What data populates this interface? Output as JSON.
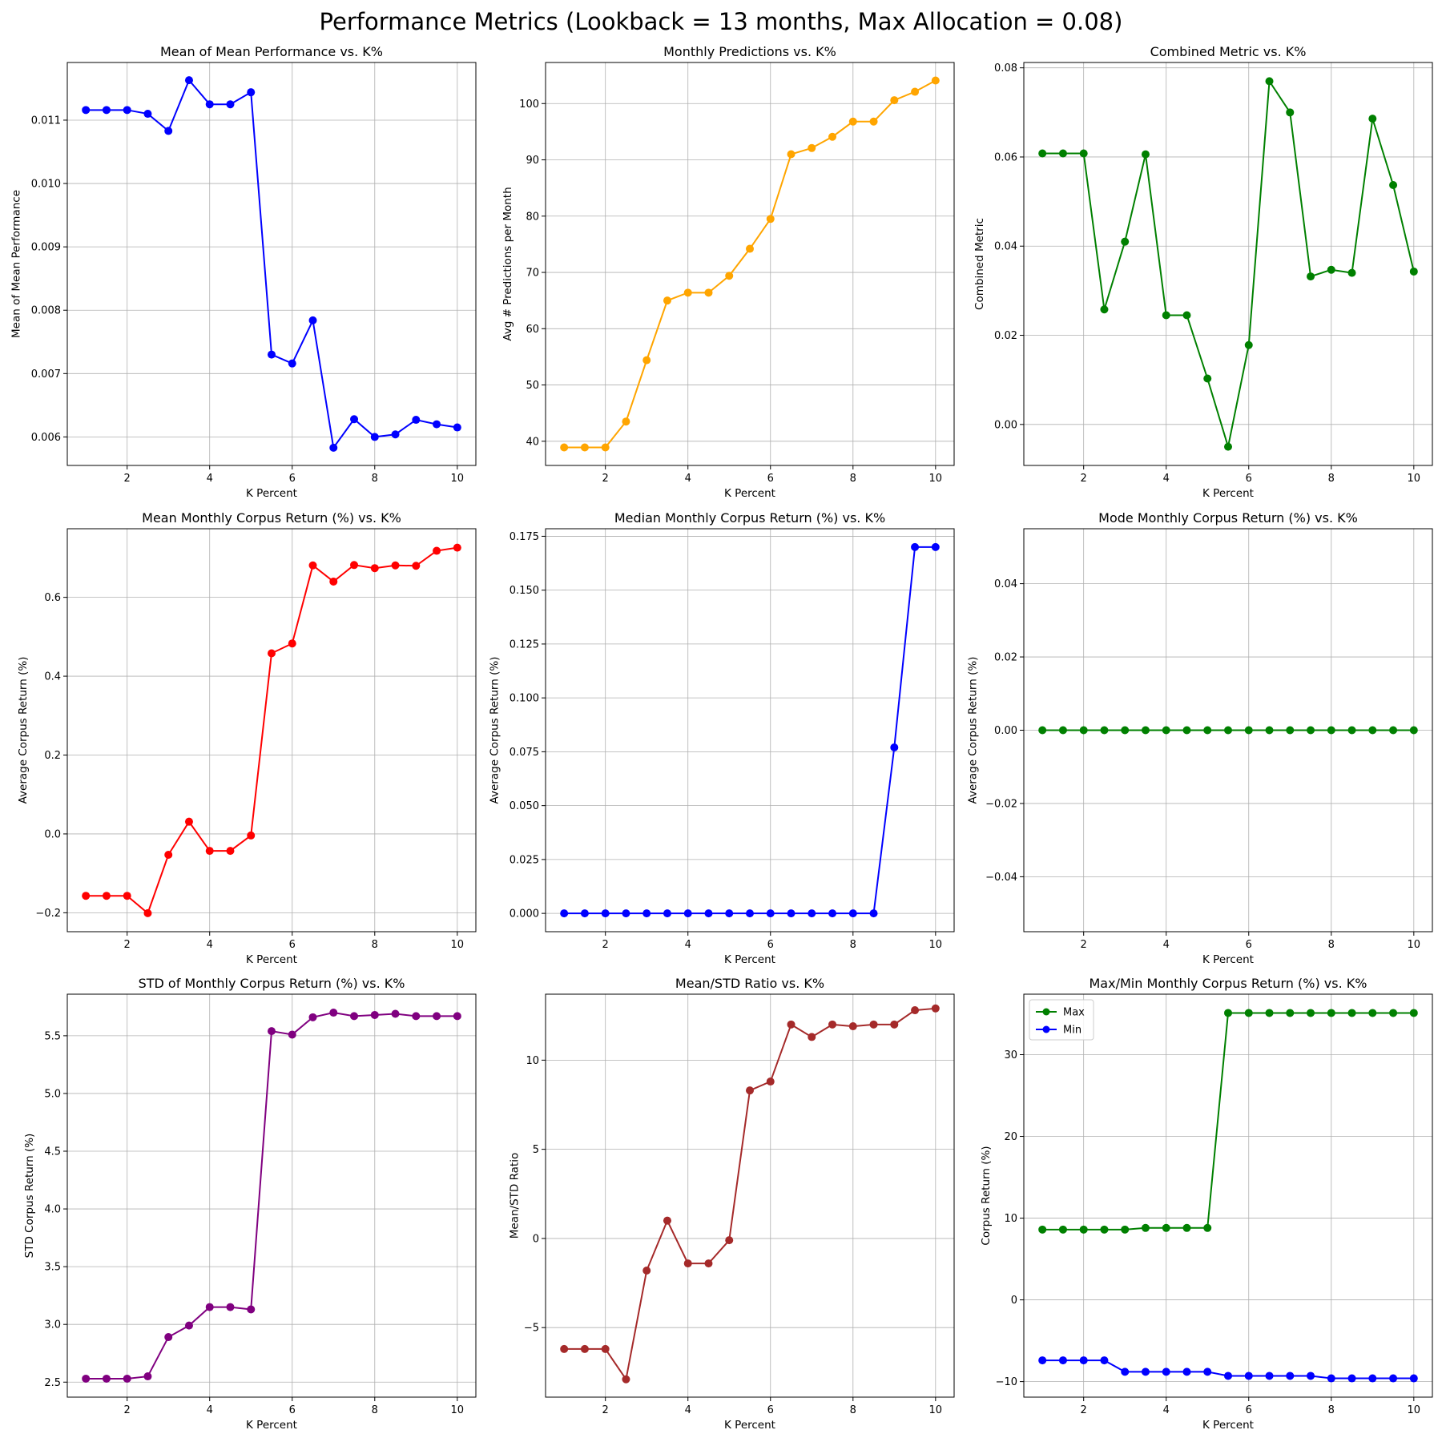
{
  "figure": {
    "title": "Performance Metrics (Lookback = 13 months, Max Allocation = 0.08)"
  },
  "chart_data": [
    {
      "type": "line",
      "title": "Mean of Mean Performance vs. K%",
      "xlabel": "K Percent",
      "ylabel": "Mean of Mean Performance",
      "xlim": [
        0.55,
        10.45
      ],
      "ylim": [
        0.00555,
        0.01191
      ],
      "xticks": [
        2,
        4,
        6,
        8,
        10
      ],
      "xtick_labels": [
        "2",
        "4",
        "6",
        "8",
        "10"
      ],
      "yticks": [
        0.006,
        0.007,
        0.008,
        0.009,
        0.01,
        0.011
      ],
      "ytick_labels": [
        "0.006",
        "0.007",
        "0.008",
        "0.009",
        "0.010",
        "0.011"
      ],
      "grid": true,
      "x": [
        1,
        1.5,
        2,
        2.5,
        3,
        3.5,
        4,
        4.5,
        5,
        5.5,
        6,
        6.5,
        7,
        7.5,
        8,
        8.5,
        9,
        9.5,
        10
      ],
      "series": [
        {
          "color": "#0000ff",
          "values": [
            0.01116,
            0.01116,
            0.01116,
            0.0111,
            0.01083,
            0.01163,
            0.01125,
            0.01125,
            0.01144,
            0.0073,
            0.00716,
            0.00784,
            0.00583,
            0.00628,
            0.006,
            0.00604,
            0.00627,
            0.0062,
            0.00615
          ]
        }
      ]
    },
    {
      "type": "line",
      "title": "Monthly Predictions vs. K%",
      "xlabel": "K Percent",
      "ylabel": "Avg # Predictions per Month",
      "xlim": [
        0.55,
        10.45
      ],
      "ylim": [
        35.7,
        107.3
      ],
      "xticks": [
        2,
        4,
        6,
        8,
        10
      ],
      "xtick_labels": [
        "2",
        "4",
        "6",
        "8",
        "10"
      ],
      "yticks": [
        40,
        50,
        60,
        70,
        80,
        90,
        100
      ],
      "ytick_labels": [
        "40",
        "50",
        "60",
        "70",
        "80",
        "90",
        "100"
      ],
      "grid": true,
      "x": [
        1,
        1.5,
        2,
        2.5,
        3,
        3.5,
        4,
        4.5,
        5,
        5.5,
        6,
        6.5,
        7,
        7.5,
        8,
        8.5,
        9,
        9.5,
        10
      ],
      "series": [
        {
          "color": "#ffa500",
          "values": [
            38.9,
            38.9,
            38.9,
            43.5,
            54.4,
            65.0,
            66.4,
            66.4,
            69.4,
            74.2,
            79.5,
            91.0,
            92.1,
            94.1,
            96.8,
            96.8,
            100.6,
            102.1,
            104.1
          ]
        }
      ]
    },
    {
      "type": "line",
      "title": "Combined Metric vs. K%",
      "xlabel": "K Percent",
      "ylabel": "Combined Metric",
      "xlim": [
        0.55,
        10.45
      ],
      "ylim": [
        -0.0092,
        0.0812
      ],
      "xticks": [
        2,
        4,
        6,
        8,
        10
      ],
      "xtick_labels": [
        "2",
        "4",
        "6",
        "8",
        "10"
      ],
      "yticks": [
        0.0,
        0.02,
        0.04,
        0.06,
        0.08
      ],
      "ytick_labels": [
        "0.00",
        "0.02",
        "0.04",
        "0.06",
        "0.08"
      ],
      "grid": true,
      "x": [
        1,
        1.5,
        2,
        2.5,
        3,
        3.5,
        4,
        4.5,
        5,
        5.5,
        6,
        6.5,
        7,
        7.5,
        8,
        8.5,
        9,
        9.5,
        10
      ],
      "series": [
        {
          "color": "#008000",
          "values": [
            0.0608,
            0.0608,
            0.0608,
            0.0258,
            0.041,
            0.0606,
            0.0245,
            0.0245,
            0.0103,
            -0.005,
            0.0178,
            0.077,
            0.07,
            0.0332,
            0.0347,
            0.034,
            0.0686,
            0.0537,
            0.0343
          ]
        }
      ]
    },
    {
      "type": "line",
      "title": "Mean Monthly Corpus Return (%) vs. K%",
      "xlabel": "K Percent",
      "ylabel": "Average Corpus Return (%)",
      "xlim": [
        0.55,
        10.45
      ],
      "ylim": [
        -0.248,
        0.774
      ],
      "xticks": [
        2,
        4,
        6,
        8,
        10
      ],
      "xtick_labels": [
        "2",
        "4",
        "6",
        "8",
        "10"
      ],
      "yticks": [
        -0.2,
        0.0,
        0.2,
        0.4,
        0.6
      ],
      "ytick_labels": [
        "−0.2",
        "0.0",
        "0.2",
        "0.4",
        "0.6"
      ],
      "grid": true,
      "x": [
        1,
        1.5,
        2,
        2.5,
        3,
        3.5,
        4,
        4.5,
        5,
        5.5,
        6,
        6.5,
        7,
        7.5,
        8,
        8.5,
        9,
        9.5,
        10
      ],
      "series": [
        {
          "color": "#ff0000",
          "values": [
            -0.157,
            -0.157,
            -0.157,
            -0.201,
            -0.053,
            0.031,
            -0.043,
            -0.043,
            -0.004,
            0.458,
            0.483,
            0.681,
            0.64,
            0.682,
            0.674,
            0.681,
            0.68,
            0.718,
            0.726
          ]
        }
      ]
    },
    {
      "type": "line",
      "title": "Median Monthly Corpus Return (%) vs. K%",
      "xlabel": "K Percent",
      "ylabel": "Average Corpus Return (%)",
      "xlim": [
        0.55,
        10.45
      ],
      "ylim": [
        -0.0085,
        0.1785
      ],
      "xticks": [
        2,
        4,
        6,
        8,
        10
      ],
      "xtick_labels": [
        "2",
        "4",
        "6",
        "8",
        "10"
      ],
      "yticks": [
        0.0,
        0.025,
        0.05,
        0.075,
        0.1,
        0.125,
        0.15,
        0.175
      ],
      "ytick_labels": [
        "0.000",
        "0.025",
        "0.050",
        "0.075",
        "0.100",
        "0.125",
        "0.150",
        "0.175"
      ],
      "grid": true,
      "x": [
        1,
        1.5,
        2,
        2.5,
        3,
        3.5,
        4,
        4.5,
        5,
        5.5,
        6,
        6.5,
        7,
        7.5,
        8,
        8.5,
        9,
        9.5,
        10
      ],
      "series": [
        {
          "color": "#0000ff",
          "values": [
            0,
            0,
            0,
            0,
            0,
            0,
            0,
            0,
            0,
            0,
            0,
            0,
            0,
            0,
            0,
            0,
            0.077,
            0.17,
            0.17
          ]
        }
      ]
    },
    {
      "type": "line",
      "title": "Mode Monthly Corpus Return (%) vs. K%",
      "xlabel": "K Percent",
      "ylabel": "Average Corpus Return (%)",
      "xlim": [
        0.55,
        10.45
      ],
      "ylim": [
        -0.055,
        0.055
      ],
      "xticks": [
        2,
        4,
        6,
        8,
        10
      ],
      "xtick_labels": [
        "2",
        "4",
        "6",
        "8",
        "10"
      ],
      "yticks": [
        -0.04,
        -0.02,
        0.0,
        0.02,
        0.04
      ],
      "ytick_labels": [
        "−0.04",
        "−0.02",
        "0.00",
        "0.02",
        "0.04"
      ],
      "grid": true,
      "x": [
        1,
        1.5,
        2,
        2.5,
        3,
        3.5,
        4,
        4.5,
        5,
        5.5,
        6,
        6.5,
        7,
        7.5,
        8,
        8.5,
        9,
        9.5,
        10
      ],
      "series": [
        {
          "color": "#008000",
          "values": [
            0,
            0,
            0,
            0,
            0,
            0,
            0,
            0,
            0,
            0,
            0,
            0,
            0,
            0,
            0,
            0,
            0,
            0,
            0
          ]
        }
      ]
    },
    {
      "type": "line",
      "title": "STD of Monthly Corpus Return (%) vs. K%",
      "xlabel": "K Percent",
      "ylabel": "STD Corpus Return (%)",
      "xlim": [
        0.55,
        10.45
      ],
      "ylim": [
        2.37,
        5.86
      ],
      "xticks": [
        2,
        4,
        6,
        8,
        10
      ],
      "xtick_labels": [
        "2",
        "4",
        "6",
        "8",
        "10"
      ],
      "yticks": [
        2.5,
        3.0,
        3.5,
        4.0,
        4.5,
        5.0,
        5.5
      ],
      "ytick_labels": [
        "2.5",
        "3.0",
        "3.5",
        "4.0",
        "4.5",
        "5.0",
        "5.5"
      ],
      "grid": true,
      "x": [
        1,
        1.5,
        2,
        2.5,
        3,
        3.5,
        4,
        4.5,
        5,
        5.5,
        6,
        6.5,
        7,
        7.5,
        8,
        8.5,
        9,
        9.5,
        10
      ],
      "series": [
        {
          "color": "#800080",
          "values": [
            2.53,
            2.53,
            2.53,
            2.55,
            2.89,
            2.99,
            3.15,
            3.15,
            3.13,
            5.54,
            5.51,
            5.66,
            5.7,
            5.67,
            5.68,
            5.69,
            5.67,
            5.67,
            5.67
          ]
        }
      ]
    },
    {
      "type": "line",
      "title": "Mean/STD Ratio vs. K%",
      "xlabel": "K Percent",
      "ylabel": "Mean/STD Ratio",
      "xlim": [
        0.55,
        10.45
      ],
      "ylim": [
        -8.9,
        13.7
      ],
      "xticks": [
        2,
        4,
        6,
        8,
        10
      ],
      "xtick_labels": [
        "2",
        "4",
        "6",
        "8",
        "10"
      ],
      "yticks": [
        -5,
        0,
        5,
        10
      ],
      "ytick_labels": [
        "−5",
        "0",
        "5",
        "10"
      ],
      "grid": true,
      "x": [
        1,
        1.5,
        2,
        2.5,
        3,
        3.5,
        4,
        4.5,
        5,
        5.5,
        6,
        6.5,
        7,
        7.5,
        8,
        8.5,
        9,
        9.5,
        10
      ],
      "series": [
        {
          "color": "#a52a2a",
          "values": [
            -6.2,
            -6.2,
            -6.2,
            -7.9,
            -1.8,
            1.0,
            -1.4,
            -1.4,
            -0.1,
            8.3,
            8.8,
            12.0,
            11.3,
            12.0,
            11.9,
            12.0,
            12.0,
            12.8,
            12.9
          ]
        }
      ]
    },
    {
      "type": "line",
      "title": "Max/Min Monthly Corpus Return (%) vs. K%",
      "xlabel": "K Percent",
      "ylabel": "Corpus Return (%)",
      "xlim": [
        0.55,
        10.45
      ],
      "ylim": [
        -11.9,
        37.4
      ],
      "xticks": [
        2,
        4,
        6,
        8,
        10
      ],
      "xtick_labels": [
        "2",
        "4",
        "6",
        "8",
        "10"
      ],
      "yticks": [
        -10,
        0,
        10,
        20,
        30
      ],
      "ytick_labels": [
        "−10",
        "0",
        "10",
        "20",
        "30"
      ],
      "grid": true,
      "legend": "top-left",
      "x": [
        1,
        1.5,
        2,
        2.5,
        3,
        3.5,
        4,
        4.5,
        5,
        5.5,
        6,
        6.5,
        7,
        7.5,
        8,
        8.5,
        9,
        9.5,
        10
      ],
      "series": [
        {
          "name": "Max",
          "color": "#008000",
          "values": [
            8.6,
            8.6,
            8.6,
            8.6,
            8.6,
            8.8,
            8.8,
            8.8,
            8.8,
            35.1,
            35.1,
            35.1,
            35.1,
            35.1,
            35.1,
            35.1,
            35.1,
            35.1,
            35.1
          ]
        },
        {
          "name": "Min",
          "color": "#0000ff",
          "values": [
            -7.4,
            -7.4,
            -7.4,
            -7.4,
            -8.8,
            -8.8,
            -8.8,
            -8.8,
            -8.8,
            -9.3,
            -9.3,
            -9.3,
            -9.3,
            -9.3,
            -9.6,
            -9.6,
            -9.6,
            -9.6,
            -9.6
          ]
        }
      ]
    }
  ]
}
